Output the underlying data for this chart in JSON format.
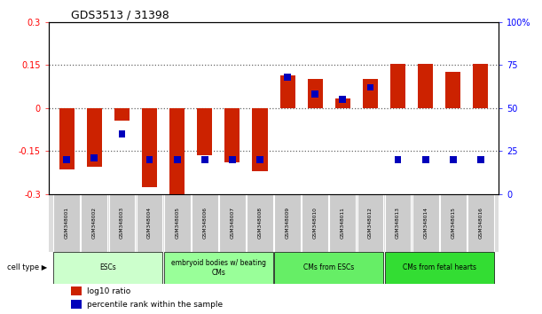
{
  "title": "GDS3513 / 31398",
  "samples": [
    "GSM348001",
    "GSM348002",
    "GSM348003",
    "GSM348004",
    "GSM348005",
    "GSM348006",
    "GSM348007",
    "GSM348008",
    "GSM348009",
    "GSM348010",
    "GSM348011",
    "GSM348012",
    "GSM348013",
    "GSM348014",
    "GSM348015",
    "GSM348016"
  ],
  "log10_ratio": [
    -0.215,
    -0.205,
    -0.045,
    -0.275,
    -0.305,
    -0.165,
    -0.19,
    -0.22,
    0.115,
    0.1,
    0.035,
    0.1,
    0.155,
    0.155,
    0.125,
    0.155
  ],
  "percentile_rank": [
    20,
    21,
    35,
    20,
    20,
    20,
    20,
    20,
    68,
    58,
    55,
    62,
    20,
    20,
    20,
    20
  ],
  "ylim": [
    -0.3,
    0.3
  ],
  "right_ylim": [
    0,
    100
  ],
  "cell_type_groups": [
    {
      "label": "ESCs",
      "start": 0,
      "end": 3,
      "color": "#ccffcc"
    },
    {
      "label": "embryoid bodies w/ beating\nCMs",
      "start": 4,
      "end": 7,
      "color": "#99ff99"
    },
    {
      "label": "CMs from ESCs",
      "start": 8,
      "end": 11,
      "color": "#66ee66"
    },
    {
      "label": "CMs from fetal hearts",
      "start": 12,
      "end": 15,
      "color": "#33dd33"
    }
  ],
  "bar_color_red": "#cc2200",
  "bar_color_blue": "#0000bb",
  "yticks_left": [
    -0.3,
    -0.15,
    0,
    0.15,
    0.3
  ],
  "ytick_labels_left": [
    "-0.3",
    "-0.15",
    "0",
    "0.15",
    "0.3"
  ],
  "yticks_right": [
    0,
    25,
    50,
    75,
    100
  ],
  "ytick_labels_right": [
    "0",
    "25",
    "50",
    "75",
    "100%"
  ],
  "dotted_lines": [
    -0.15,
    0.0,
    0.15
  ],
  "background_color": "#ffffff"
}
